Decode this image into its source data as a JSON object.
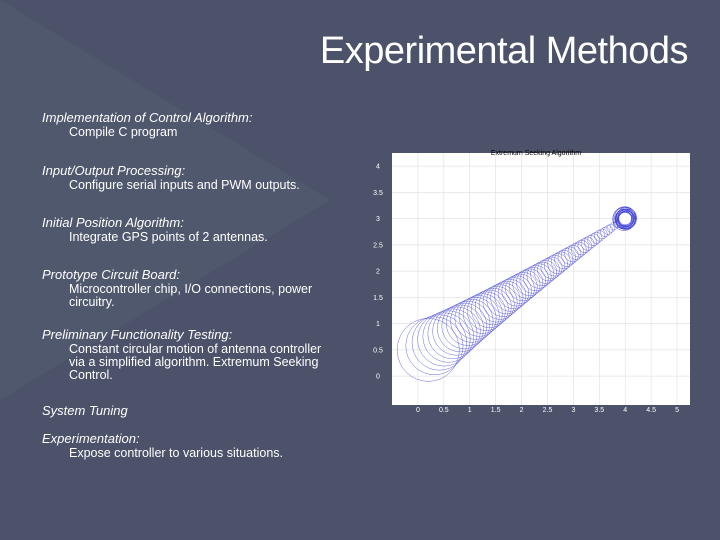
{
  "slide": {
    "title": "Experimental Methods",
    "items": [
      {
        "heading": "Implementation of  Control Algorithm:",
        "detail": [
          "Compile C program"
        ]
      },
      {
        "heading": "Input/Output Processing:",
        "detail": [
          "Configure serial inputs and PWM outputs."
        ]
      },
      {
        "heading": "Initial Position Algorithm:",
        "detail": [
          "Integrate GPS points of 2 antennas."
        ]
      },
      {
        "heading": "Prototype Circuit Board:",
        "detail": [
          "Microcontroller chip, I/O connections, power",
          "circuitry."
        ]
      },
      {
        "heading": "Preliminary Functionality Testing:",
        "detail": [
          "Constant circular motion of antenna controller",
          "via a simplified algorithm. Extremum Seeking",
          "Control."
        ]
      },
      {
        "heading": "System Tuning",
        "detail": []
      },
      {
        "heading": "Experimentation:",
        "detail": [
          "Expose controller to various situations."
        ]
      }
    ]
  },
  "chart_data": {
    "type": "line",
    "title": "Extremum Seeking Algorithm",
    "xlabel": "",
    "ylabel": "",
    "xlim": [
      -0.5,
      5.25
    ],
    "ylim": [
      -0.55,
      4.25
    ],
    "xticks": [
      "0",
      "0.5",
      "1",
      "1.5",
      "2",
      "2.5",
      "3",
      "3.5",
      "4",
      "4.5",
      "5"
    ],
    "yticks": [
      "0",
      "0.5",
      "1",
      "1.5",
      "2",
      "2.5",
      "3",
      "3.5",
      "4"
    ],
    "grid": true,
    "line_color": "#3b3bd6",
    "trajectory": {
      "description_free": true,
      "start": [
        0.2,
        0.5
      ],
      "end": [
        4.0,
        3.0
      ],
      "start_radius": 0.6,
      "end_radius": 0.05,
      "loops": 60
    }
  }
}
